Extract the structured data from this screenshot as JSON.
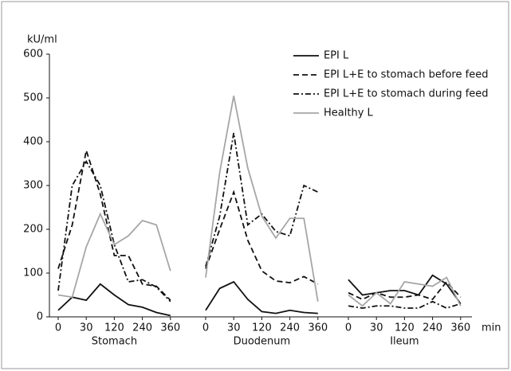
{
  "chart_data": {
    "type": "line",
    "y_label": "kU/ml",
    "x_label": "min",
    "ylim": [
      0,
      600
    ],
    "yticks": [
      0,
      100,
      200,
      300,
      400,
      500,
      600
    ],
    "panels": [
      {
        "label": "Stomach",
        "categories": [
          "0",
          null,
          "30",
          null,
          "120",
          null,
          "240",
          null,
          "360"
        ]
      },
      {
        "label": "Duodenum",
        "categories": [
          "0",
          null,
          "30",
          null,
          "120",
          null,
          "240",
          null,
          "360"
        ]
      },
      {
        "label": "Ileum",
        "categories": [
          "0",
          null,
          "30",
          null,
          "120",
          null,
          "240",
          null,
          "360"
        ]
      }
    ],
    "series": [
      {
        "name": "EPI L",
        "color": "#111111",
        "style": "solid",
        "values": [
          [
            15,
            45,
            38,
            75,
            50,
            28,
            22,
            10,
            3
          ],
          [
            15,
            65,
            80,
            40,
            12,
            8,
            15,
            10,
            8
          ],
          [
            85,
            50,
            55,
            60,
            60,
            50,
            95,
            75,
            30
          ]
        ]
      },
      {
        "name": "EPI L+E to stomach before feed",
        "color": "#111111",
        "style": "dashed",
        "values": [
          [
            110,
            210,
            380,
            280,
            140,
            140,
            75,
            70,
            38
          ],
          [
            110,
            200,
            285,
            175,
            105,
            82,
            78,
            92,
            75
          ],
          [
            55,
            40,
            55,
            45,
            45,
            50,
            40,
            80,
            45
          ]
        ]
      },
      {
        "name": "EPI L+E to stomach during feed",
        "color": "#111111",
        "style": "dashdot",
        "values": [
          [
            60,
            300,
            355,
            300,
            165,
            80,
            85,
            68,
            35
          ],
          [
            115,
            230,
            420,
            210,
            235,
            195,
            185,
            300,
            285
          ],
          [
            25,
            20,
            25,
            25,
            20,
            20,
            35,
            20,
            30
          ]
        ]
      },
      {
        "name": "Healthy L",
        "color": "#a6a6a6",
        "style": "solid",
        "values": [
          [
            50,
            45,
            160,
            235,
            165,
            185,
            220,
            210,
            105
          ],
          [
            90,
            330,
            505,
            340,
            230,
            180,
            225,
            225,
            35
          ],
          [
            50,
            25,
            55,
            30,
            80,
            75,
            70,
            90,
            25
          ]
        ]
      }
    ]
  }
}
